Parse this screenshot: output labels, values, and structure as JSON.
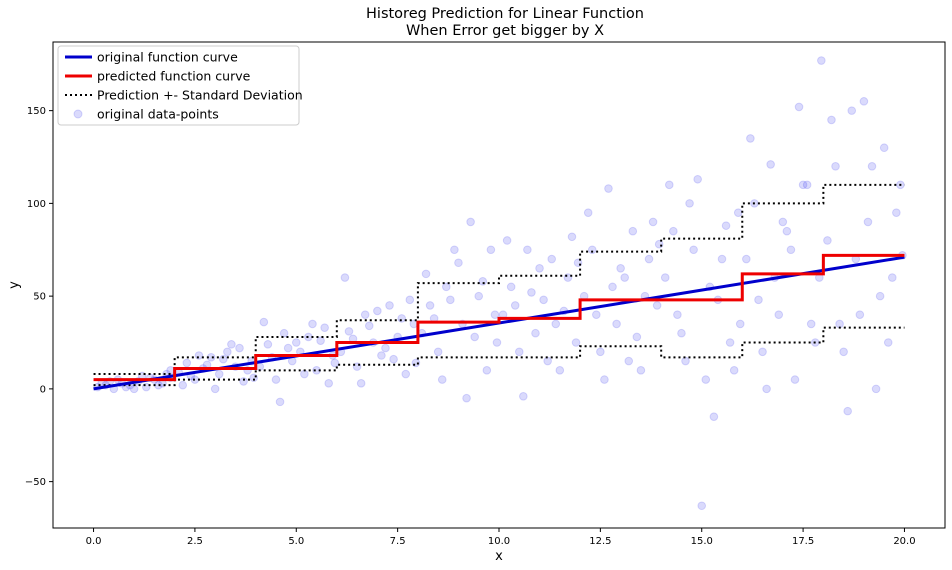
{
  "chart_data": {
    "type": "line",
    "title": "Historeg Prediction for Linear Function",
    "subtitle": "When Error get bigger by X",
    "xlabel": "x",
    "ylabel": "y",
    "xlim": [
      -1,
      21
    ],
    "ylim": [
      -75,
      187
    ],
    "xticks": [
      0.0,
      2.5,
      5.0,
      7.5,
      10.0,
      12.5,
      15.0,
      17.5,
      20.0
    ],
    "xtick_labels": [
      "0.0",
      "2.5",
      "5.0",
      "7.5",
      "10.0",
      "12.5",
      "15.0",
      "17.5",
      "20.0"
    ],
    "yticks": [
      -50,
      0,
      50,
      100,
      150
    ],
    "ytick_labels": [
      "−50",
      "0",
      "50",
      "100",
      "150"
    ],
    "grid": false,
    "legend_position": "top-left",
    "series": [
      {
        "name": "original function curve",
        "kind": "line",
        "color": "#0000cc",
        "x": [
          0,
          20
        ],
        "y": [
          0,
          71
        ]
      },
      {
        "name": "predicted function curve",
        "kind": "step",
        "color": "#ee0000",
        "x": [
          0,
          2,
          2,
          4,
          4,
          6,
          6,
          8,
          8,
          10,
          10,
          12,
          12,
          14,
          14,
          16,
          16,
          18,
          18,
          20
        ],
        "y": [
          5,
          5,
          11,
          11,
          18,
          18,
          25,
          25,
          36,
          36,
          38,
          38,
          48,
          48,
          48,
          48,
          62,
          62,
          72,
          72
        ]
      },
      {
        "name": "Prediction +- Standard Deviation",
        "kind": "step-dotted",
        "color": "#000000",
        "bands": [
          {
            "x": [
              0,
              2,
              2,
              4,
              4,
              6,
              6,
              8,
              8,
              10,
              10,
              12,
              12,
              14,
              14,
              16,
              16,
              18,
              18,
              20
            ],
            "y": [
              8,
              8,
              17,
              17,
              28,
              28,
              37,
              37,
              57,
              57,
              61,
              61,
              74,
              74,
              81,
              81,
              100,
              100,
              110,
              110
            ]
          },
          {
            "x": [
              0,
              2,
              2,
              4,
              4,
              6,
              6,
              8,
              8,
              10,
              10,
              12,
              12,
              14,
              14,
              16,
              16,
              18,
              18,
              20
            ],
            "y": [
              2,
              2,
              5,
              5,
              10,
              10,
              13,
              13,
              17,
              17,
              17,
              17,
              23,
              23,
              17,
              17,
              25,
              25,
              33,
              33
            ]
          }
        ]
      },
      {
        "name": "original data-points",
        "kind": "scatter",
        "color": "#4444ee",
        "alpha": 0.2,
        "points": [
          [
            0.1,
            1
          ],
          [
            0.3,
            2
          ],
          [
            0.5,
            0
          ],
          [
            0.7,
            3
          ],
          [
            0.9,
            2
          ],
          [
            1.1,
            4
          ],
          [
            1.3,
            1
          ],
          [
            1.5,
            5
          ],
          [
            1.7,
            3
          ],
          [
            1.9,
            6
          ],
          [
            0.4,
            4
          ],
          [
            0.8,
            1
          ],
          [
            1.2,
            7
          ],
          [
            1.6,
            2
          ],
          [
            1.8,
            8
          ],
          [
            0.2,
            3
          ],
          [
            0.6,
            5
          ],
          [
            1.0,
            0
          ],
          [
            1.4,
            6
          ],
          [
            1.9,
            10
          ],
          [
            2.1,
            9
          ],
          [
            2.3,
            14
          ],
          [
            2.5,
            5
          ],
          [
            2.7,
            11
          ],
          [
            2.9,
            17
          ],
          [
            3.1,
            8
          ],
          [
            3.3,
            20
          ],
          [
            3.5,
            12
          ],
          [
            3.7,
            4
          ],
          [
            3.9,
            15
          ],
          [
            2.2,
            2
          ],
          [
            2.6,
            18
          ],
          [
            3.0,
            0
          ],
          [
            3.4,
            24
          ],
          [
            3.8,
            10
          ],
          [
            2.4,
            7
          ],
          [
            2.8,
            13
          ],
          [
            3.2,
            16
          ],
          [
            3.6,
            22
          ],
          [
            3.95,
            6
          ],
          [
            4.1,
            12
          ],
          [
            4.3,
            24
          ],
          [
            4.5,
            5
          ],
          [
            4.7,
            30
          ],
          [
            4.9,
            15
          ],
          [
            5.1,
            20
          ],
          [
            5.3,
            28
          ],
          [
            5.5,
            10
          ],
          [
            5.7,
            33
          ],
          [
            5.9,
            18
          ],
          [
            4.2,
            36
          ],
          [
            4.6,
            -7
          ],
          [
            5.0,
            25
          ],
          [
            5.4,
            35
          ],
          [
            5.8,
            3
          ],
          [
            4.4,
            17
          ],
          [
            4.8,
            22
          ],
          [
            5.2,
            8
          ],
          [
            5.6,
            26
          ],
          [
            5.95,
            14
          ],
          [
            6.1,
            20
          ],
          [
            6.3,
            31
          ],
          [
            6.5,
            12
          ],
          [
            6.7,
            40
          ],
          [
            6.9,
            25
          ],
          [
            7.1,
            18
          ],
          [
            7.3,
            45
          ],
          [
            7.5,
            28
          ],
          [
            7.7,
            8
          ],
          [
            7.9,
            35
          ],
          [
            6.2,
            60
          ],
          [
            6.6,
            3
          ],
          [
            7.0,
            42
          ],
          [
            7.4,
            16
          ],
          [
            7.8,
            48
          ],
          [
            6.4,
            27
          ],
          [
            6.8,
            34
          ],
          [
            7.2,
            22
          ],
          [
            7.6,
            38
          ],
          [
            7.95,
            14
          ],
          [
            8.1,
            30
          ],
          [
            8.3,
            45
          ],
          [
            8.5,
            20
          ],
          [
            8.7,
            55
          ],
          [
            8.9,
            75
          ],
          [
            9.1,
            35
          ],
          [
            9.3,
            90
          ],
          [
            9.5,
            50
          ],
          [
            9.7,
            10
          ],
          [
            9.9,
            40
          ],
          [
            8.2,
            62
          ],
          [
            8.6,
            5
          ],
          [
            9.0,
            68
          ],
          [
            9.4,
            28
          ],
          [
            9.8,
            75
          ],
          [
            8.4,
            38
          ],
          [
            8.8,
            48
          ],
          [
            9.2,
            -5
          ],
          [
            9.6,
            58
          ],
          [
            9.95,
            25
          ],
          [
            10.1,
            40
          ],
          [
            10.3,
            55
          ],
          [
            10.5,
            20
          ],
          [
            10.7,
            75
          ],
          [
            10.9,
            30
          ],
          [
            11.1,
            48
          ],
          [
            11.3,
            70
          ],
          [
            11.5,
            10
          ],
          [
            11.7,
            60
          ],
          [
            11.9,
            25
          ],
          [
            10.2,
            80
          ],
          [
            10.6,
            -4
          ],
          [
            11.0,
            65
          ],
          [
            11.4,
            35
          ],
          [
            11.8,
            82
          ],
          [
            10.4,
            45
          ],
          [
            10.8,
            52
          ],
          [
            11.2,
            15
          ],
          [
            11.6,
            42
          ],
          [
            11.95,
            68
          ],
          [
            12.1,
            50
          ],
          [
            12.3,
            75
          ],
          [
            12.5,
            20
          ],
          [
            12.7,
            108
          ],
          [
            12.9,
            35
          ],
          [
            13.1,
            60
          ],
          [
            13.3,
            85
          ],
          [
            13.5,
            10
          ],
          [
            13.7,
            70
          ],
          [
            13.9,
            45
          ],
          [
            12.2,
            95
          ],
          [
            12.6,
            5
          ],
          [
            13.0,
            65
          ],
          [
            13.4,
            28
          ],
          [
            13.8,
            90
          ],
          [
            12.4,
            40
          ],
          [
            12.8,
            55
          ],
          [
            13.2,
            15
          ],
          [
            13.6,
            50
          ],
          [
            13.95,
            78
          ],
          [
            14.1,
            60
          ],
          [
            14.3,
            85
          ],
          [
            14.5,
            30
          ],
          [
            14.7,
            100
          ],
          [
            14.9,
            113
          ],
          [
            15.1,
            5
          ],
          [
            15.3,
            -15
          ],
          [
            15.5,
            70
          ],
          [
            15.7,
            25
          ],
          [
            15.9,
            95
          ],
          [
            14.2,
            110
          ],
          [
            14.6,
            15
          ],
          [
            15.0,
            -63
          ],
          [
            15.4,
            48
          ],
          [
            15.8,
            10
          ],
          [
            14.4,
            40
          ],
          [
            14.8,
            75
          ],
          [
            15.2,
            55
          ],
          [
            15.6,
            88
          ],
          [
            15.95,
            35
          ],
          [
            16.1,
            70
          ],
          [
            16.3,
            100
          ],
          [
            16.5,
            20
          ],
          [
            16.7,
            121
          ],
          [
            16.9,
            40
          ],
          [
            17.1,
            85
          ],
          [
            17.3,
            5
          ],
          [
            17.5,
            110
          ],
          [
            17.7,
            35
          ],
          [
            17.9,
            60
          ],
          [
            16.2,
            135
          ],
          [
            16.6,
            0
          ],
          [
            17.0,
            90
          ],
          [
            17.4,
            152
          ],
          [
            17.8,
            25
          ],
          [
            16.4,
            48
          ],
          [
            16.8,
            60
          ],
          [
            17.2,
            75
          ],
          [
            17.6,
            110
          ],
          [
            17.95,
            177
          ],
          [
            18.1,
            80
          ],
          [
            18.3,
            120
          ],
          [
            18.5,
            20
          ],
          [
            18.7,
            150
          ],
          [
            18.9,
            40
          ],
          [
            19.1,
            90
          ],
          [
            19.3,
            0
          ],
          [
            19.5,
            130
          ],
          [
            19.7,
            60
          ],
          [
            19.9,
            110
          ],
          [
            18.2,
            145
          ],
          [
            18.6,
            -12
          ],
          [
            19.0,
            155
          ],
          [
            19.4,
            50
          ],
          [
            19.8,
            95
          ],
          [
            18.4,
            35
          ],
          [
            18.8,
            70
          ],
          [
            19.2,
            120
          ],
          [
            19.6,
            25
          ],
          [
            19.95,
            72
          ]
        ]
      }
    ]
  }
}
